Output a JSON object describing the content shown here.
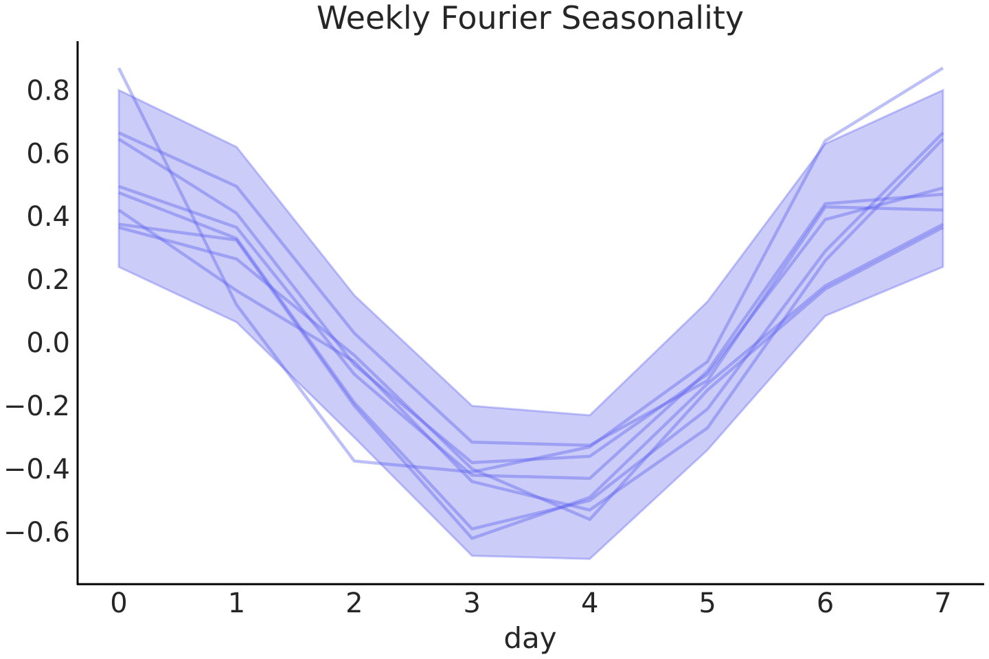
{
  "chart_data": {
    "type": "line",
    "title": "Weekly Fourier Seasonality",
    "xlabel": "day",
    "ylabel": "",
    "x": [
      0,
      1,
      2,
      3,
      4,
      5,
      6,
      7
    ],
    "xticks": [
      "0",
      "1",
      "2",
      "3",
      "4",
      "5",
      "6",
      "7"
    ],
    "yticks": [
      "0.8",
      "0.6",
      "0.4",
      "0.2",
      "0.0",
      "−0.2",
      "−0.4",
      "−0.6"
    ],
    "ytick_values": [
      0.8,
      0.6,
      0.4,
      0.2,
      0.0,
      -0.2,
      -0.4,
      -0.6
    ],
    "xlim": [
      -0.35,
      7.35
    ],
    "ylim": [
      -0.765,
      0.955
    ],
    "grid": false,
    "legend": "none",
    "line_color": "#5b5ff0",
    "band_color": "#c8c9f7",
    "band": {
      "upper": [
        0.8,
        0.62,
        0.15,
        -0.2,
        -0.23,
        0.13,
        0.63,
        0.8
      ],
      "lower": [
        0.24,
        0.065,
        -0.3,
        -0.675,
        -0.685,
        -0.34,
        0.085,
        0.24
      ]
    },
    "series": [
      {
        "values": [
          0.87,
          0.12,
          -0.375,
          -0.41,
          -0.33,
          -0.06,
          0.64,
          0.87
        ]
      },
      {
        "values": [
          0.665,
          0.495,
          0.03,
          -0.315,
          -0.325,
          -0.12,
          0.43,
          0.42
        ]
      },
      {
        "values": [
          0.645,
          0.41,
          -0.07,
          -0.38,
          -0.36,
          -0.1,
          0.39,
          0.49
        ]
      },
      {
        "values": [
          0.495,
          0.365,
          -0.1,
          -0.42,
          -0.43,
          -0.09,
          0.44,
          0.47
        ]
      },
      {
        "values": [
          0.475,
          0.33,
          -0.19,
          -0.59,
          -0.5,
          -0.21,
          0.29,
          0.665
        ]
      },
      {
        "values": [
          0.42,
          0.165,
          -0.06,
          -0.44,
          -0.53,
          -0.27,
          0.26,
          0.645
        ]
      },
      {
        "values": [
          0.375,
          0.325,
          -0.2,
          -0.62,
          -0.49,
          -0.13,
          0.18,
          0.375
        ]
      },
      {
        "values": [
          0.365,
          0.265,
          -0.04,
          -0.4,
          -0.56,
          -0.15,
          0.17,
          0.365
        ]
      }
    ]
  }
}
